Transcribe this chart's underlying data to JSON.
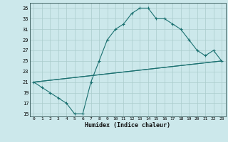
{
  "xlabel": "Humidex (Indice chaleur)",
  "xlim": [
    -0.5,
    23.5
  ],
  "ylim": [
    14.5,
    36
  ],
  "yticks": [
    15,
    17,
    19,
    21,
    23,
    25,
    27,
    29,
    31,
    33,
    35
  ],
  "xticks": [
    0,
    1,
    2,
    3,
    4,
    5,
    6,
    7,
    8,
    9,
    10,
    11,
    12,
    13,
    14,
    15,
    16,
    17,
    18,
    19,
    20,
    21,
    22,
    23
  ],
  "bg_color": "#cce8eb",
  "grid_color": "#aacccc",
  "line_color": "#1a7070",
  "series1_x": [
    0,
    1,
    2,
    3,
    4,
    5,
    6,
    7,
    8,
    9,
    10,
    11,
    12,
    13,
    14,
    15,
    16,
    17,
    18,
    19,
    20,
    21,
    22,
    23
  ],
  "series1_y": [
    21,
    20,
    19,
    18,
    17,
    15,
    15,
    21,
    25,
    29,
    31,
    32,
    34,
    35,
    35,
    33,
    33,
    32,
    31,
    29,
    27,
    26,
    27,
    25
  ],
  "series2_x": [
    0,
    23
  ],
  "series2_y": [
    21,
    25
  ],
  "series3_x": [
    0,
    23
  ],
  "series3_y": [
    21,
    25
  ]
}
